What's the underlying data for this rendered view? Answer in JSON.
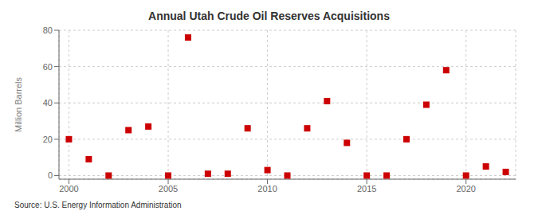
{
  "chart_data": {
    "type": "scatter",
    "title": "Annual Utah Crude Oil Reserves Acquisitions",
    "ylabel": "Million Barrels",
    "annotations": [
      "Source: U.S. Energy Information Administration"
    ],
    "x": [
      2000,
      2001,
      2002,
      2003,
      2004,
      2005,
      2006,
      2007,
      2008,
      2009,
      2010,
      2011,
      2012,
      2013,
      2014,
      2015,
      2016,
      2017,
      2018,
      2019,
      2020,
      2021,
      2022
    ],
    "values": [
      20,
      9,
      0,
      25,
      27,
      0,
      76,
      1,
      1,
      26,
      3,
      0,
      26,
      41,
      18,
      0,
      0,
      20,
      39,
      58,
      0,
      5,
      2
    ],
    "color": "#cc0000",
    "marker": "square",
    "xlim": [
      1999.5,
      2022.5
    ],
    "xticks": [
      2000,
      2005,
      2010,
      2015,
      2020
    ],
    "ylim": [
      -2,
      80
    ],
    "yticks": [
      0,
      20,
      40,
      60,
      80
    ],
    "grid": true
  }
}
